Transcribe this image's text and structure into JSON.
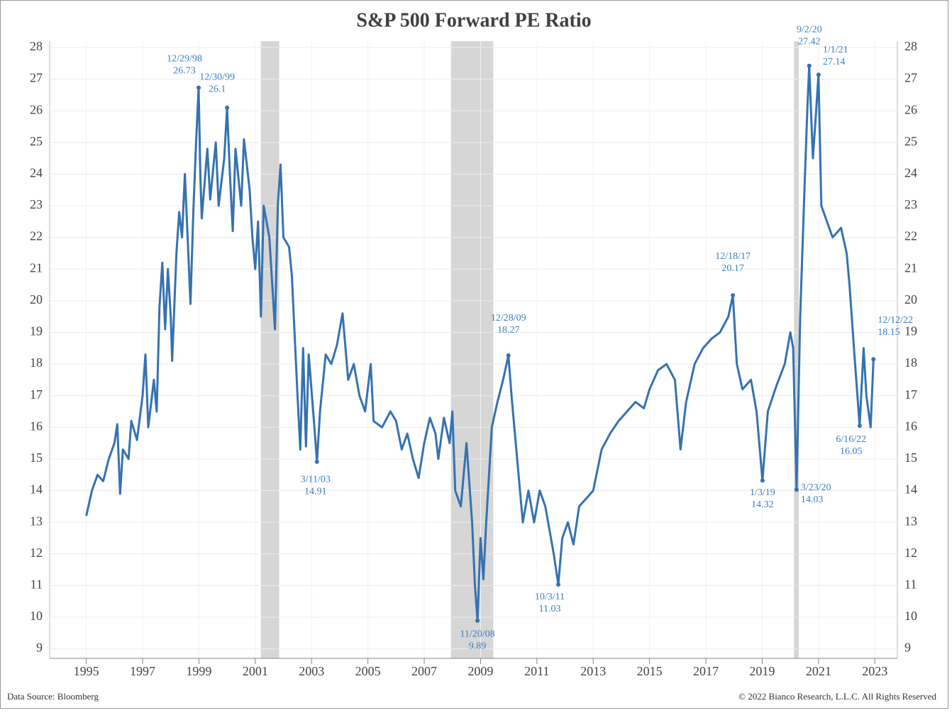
{
  "chart_data": {
    "type": "line",
    "title": "S&P 500 Forward PE Ratio",
    "source": "Data Source: Bloomberg",
    "copyright": "© 2022 Bianco Research, L.L.C. All Rights Reserved",
    "color": "#3572b0",
    "label_color": "#3d7fc1",
    "recession_color": "#d6d6d6",
    "grid": true,
    "xlim": [
      1993.7,
      2023.8
    ],
    "xticks": [
      1995,
      1997,
      1999,
      2001,
      2003,
      2005,
      2007,
      2009,
      2011,
      2013,
      2015,
      2017,
      2019,
      2021,
      2023
    ],
    "ylim": [
      8.7,
      28.2
    ],
    "yticks": [
      9,
      10,
      11,
      12,
      13,
      14,
      15,
      16,
      17,
      18,
      19,
      20,
      21,
      22,
      23,
      24,
      25,
      26,
      27,
      28
    ],
    "recessions": [
      [
        2001.2,
        2001.85
      ],
      [
        2007.95,
        2009.45
      ],
      [
        2020.13,
        2020.3
      ]
    ],
    "x": [
      1995.0,
      1995.2,
      1995.4,
      1995.6,
      1995.8,
      1996.0,
      1996.1,
      1996.2,
      1996.3,
      1996.5,
      1996.6,
      1996.8,
      1997.0,
      1997.1,
      1997.2,
      1997.4,
      1997.5,
      1997.6,
      1997.7,
      1997.8,
      1997.9,
      1998.0,
      1998.05,
      1998.2,
      1998.3,
      1998.4,
      1998.5,
      1998.6,
      1998.7,
      1998.8,
      1998.9,
      1998.99,
      1999.05,
      1999.1,
      1999.3,
      1999.4,
      1999.6,
      1999.7,
      1999.9,
      2000.0,
      2000.1,
      2000.2,
      2000.3,
      2000.5,
      2000.6,
      2000.8,
      2000.9,
      2001.0,
      2001.1,
      2001.2,
      2001.3,
      2001.5,
      2001.7,
      2001.8,
      2001.9,
      2002.0,
      2002.2,
      2002.3,
      2002.5,
      2002.6,
      2002.7,
      2002.8,
      2002.9,
      2003.1,
      2003.19,
      2003.3,
      2003.5,
      2003.7,
      2003.9,
      2004.1,
      2004.3,
      2004.5,
      2004.7,
      2004.9,
      2005.1,
      2005.2,
      2005.5,
      2005.8,
      2006.0,
      2006.2,
      2006.4,
      2006.6,
      2006.8,
      2007.0,
      2007.2,
      2007.4,
      2007.5,
      2007.7,
      2007.9,
      2008.0,
      2008.1,
      2008.3,
      2008.5,
      2008.7,
      2008.8,
      2008.89,
      2009.0,
      2009.1,
      2009.2,
      2009.4,
      2009.6,
      2009.8,
      2009.99,
      2010.1,
      2010.3,
      2010.5,
      2010.7,
      2010.9,
      2011.1,
      2011.3,
      2011.6,
      2011.76,
      2011.9,
      2012.1,
      2012.3,
      2012.5,
      2012.8,
      2013.0,
      2013.3,
      2013.6,
      2013.9,
      2014.2,
      2014.5,
      2014.8,
      2015.0,
      2015.3,
      2015.6,
      2015.9,
      2016.1,
      2016.3,
      2016.6,
      2016.9,
      2017.2,
      2017.5,
      2017.8,
      2017.96,
      2018.1,
      2018.3,
      2018.6,
      2018.8,
      2019.01,
      2019.2,
      2019.5,
      2019.8,
      2020.0,
      2020.1,
      2020.22,
      2020.35,
      2020.5,
      2020.6,
      2020.67,
      2020.8,
      2020.9,
      2021.0,
      2021.1,
      2021.3,
      2021.5,
      2021.8,
      2022.0,
      2022.1,
      2022.3,
      2022.46,
      2022.6,
      2022.7,
      2022.85,
      2022.95
    ],
    "values": [
      13.2,
      14.0,
      14.5,
      14.3,
      15.0,
      15.5,
      16.1,
      13.9,
      15.3,
      15.0,
      16.2,
      15.6,
      17.0,
      18.3,
      16.0,
      17.5,
      16.5,
      19.8,
      21.2,
      19.1,
      21.0,
      19.5,
      18.1,
      21.5,
      22.8,
      22.0,
      24.0,
      22.0,
      19.9,
      22.8,
      25.0,
      26.73,
      24.0,
      22.6,
      24.8,
      23.2,
      25.0,
      23.0,
      24.5,
      26.1,
      24.0,
      22.2,
      24.8,
      23.0,
      25.1,
      23.5,
      22.0,
      21.0,
      22.5,
      19.5,
      23.0,
      22.0,
      19.1,
      23.0,
      24.3,
      22.0,
      21.7,
      20.8,
      17.0,
      15.3,
      18.5,
      15.4,
      18.3,
      16.0,
      14.91,
      16.5,
      18.3,
      18.0,
      18.6,
      19.6,
      17.5,
      18.0,
      17.0,
      16.5,
      18.0,
      16.2,
      16.0,
      16.5,
      16.2,
      15.3,
      15.8,
      15.0,
      14.4,
      15.5,
      16.3,
      15.8,
      15.0,
      16.3,
      15.5,
      16.5,
      14.0,
      13.5,
      15.5,
      13.0,
      11.0,
      9.89,
      12.5,
      11.2,
      13.0,
      16.0,
      16.8,
      17.5,
      18.27,
      17.0,
      15.0,
      13.0,
      14.0,
      13.0,
      14.0,
      13.5,
      12.0,
      11.03,
      12.5,
      13.0,
      12.3,
      13.5,
      13.8,
      14.0,
      15.3,
      15.8,
      16.2,
      16.5,
      16.8,
      16.6,
      17.2,
      17.8,
      18.0,
      17.5,
      15.3,
      16.8,
      18.0,
      18.5,
      18.8,
      19.0,
      19.5,
      20.17,
      18.0,
      17.2,
      17.5,
      16.5,
      14.32,
      16.5,
      17.3,
      18.0,
      19.0,
      18.5,
      14.03,
      19.5,
      23.5,
      26.0,
      27.42,
      24.5,
      25.8,
      27.14,
      23.0,
      22.5,
      22.0,
      22.3,
      21.5,
      20.5,
      18.0,
      16.05,
      18.5,
      17.0,
      16.0,
      18.15
    ],
    "annotations": [
      {
        "date": "12/29/98",
        "x": 1998.99,
        "value": 26.73
      },
      {
        "date": "12/30/99",
        "x": 2000.0,
        "value": 26.1
      },
      {
        "date": "3/11/03",
        "x": 2003.19,
        "value": 14.91
      },
      {
        "date": "11/20/08",
        "x": 2008.89,
        "value": 9.89
      },
      {
        "date": "12/28/09",
        "x": 2009.99,
        "value": 18.27
      },
      {
        "date": "10/3/11",
        "x": 2011.76,
        "value": 11.03
      },
      {
        "date": "12/18/17",
        "x": 2017.96,
        "value": 20.17
      },
      {
        "date": "1/3/19",
        "x": 2019.01,
        "value": 14.32
      },
      {
        "date": "9/2/20",
        "x": 2020.67,
        "value": 27.42
      },
      {
        "date": "3/23/20",
        "x": 2020.22,
        "value": 14.03
      },
      {
        "date": "1/1/21",
        "x": 2021.0,
        "value": 27.14
      },
      {
        "date": "6/16/22",
        "x": 2022.46,
        "value": 16.05
      },
      {
        "date": "12/12/22",
        "x": 2022.95,
        "value": 18.15
      }
    ]
  }
}
